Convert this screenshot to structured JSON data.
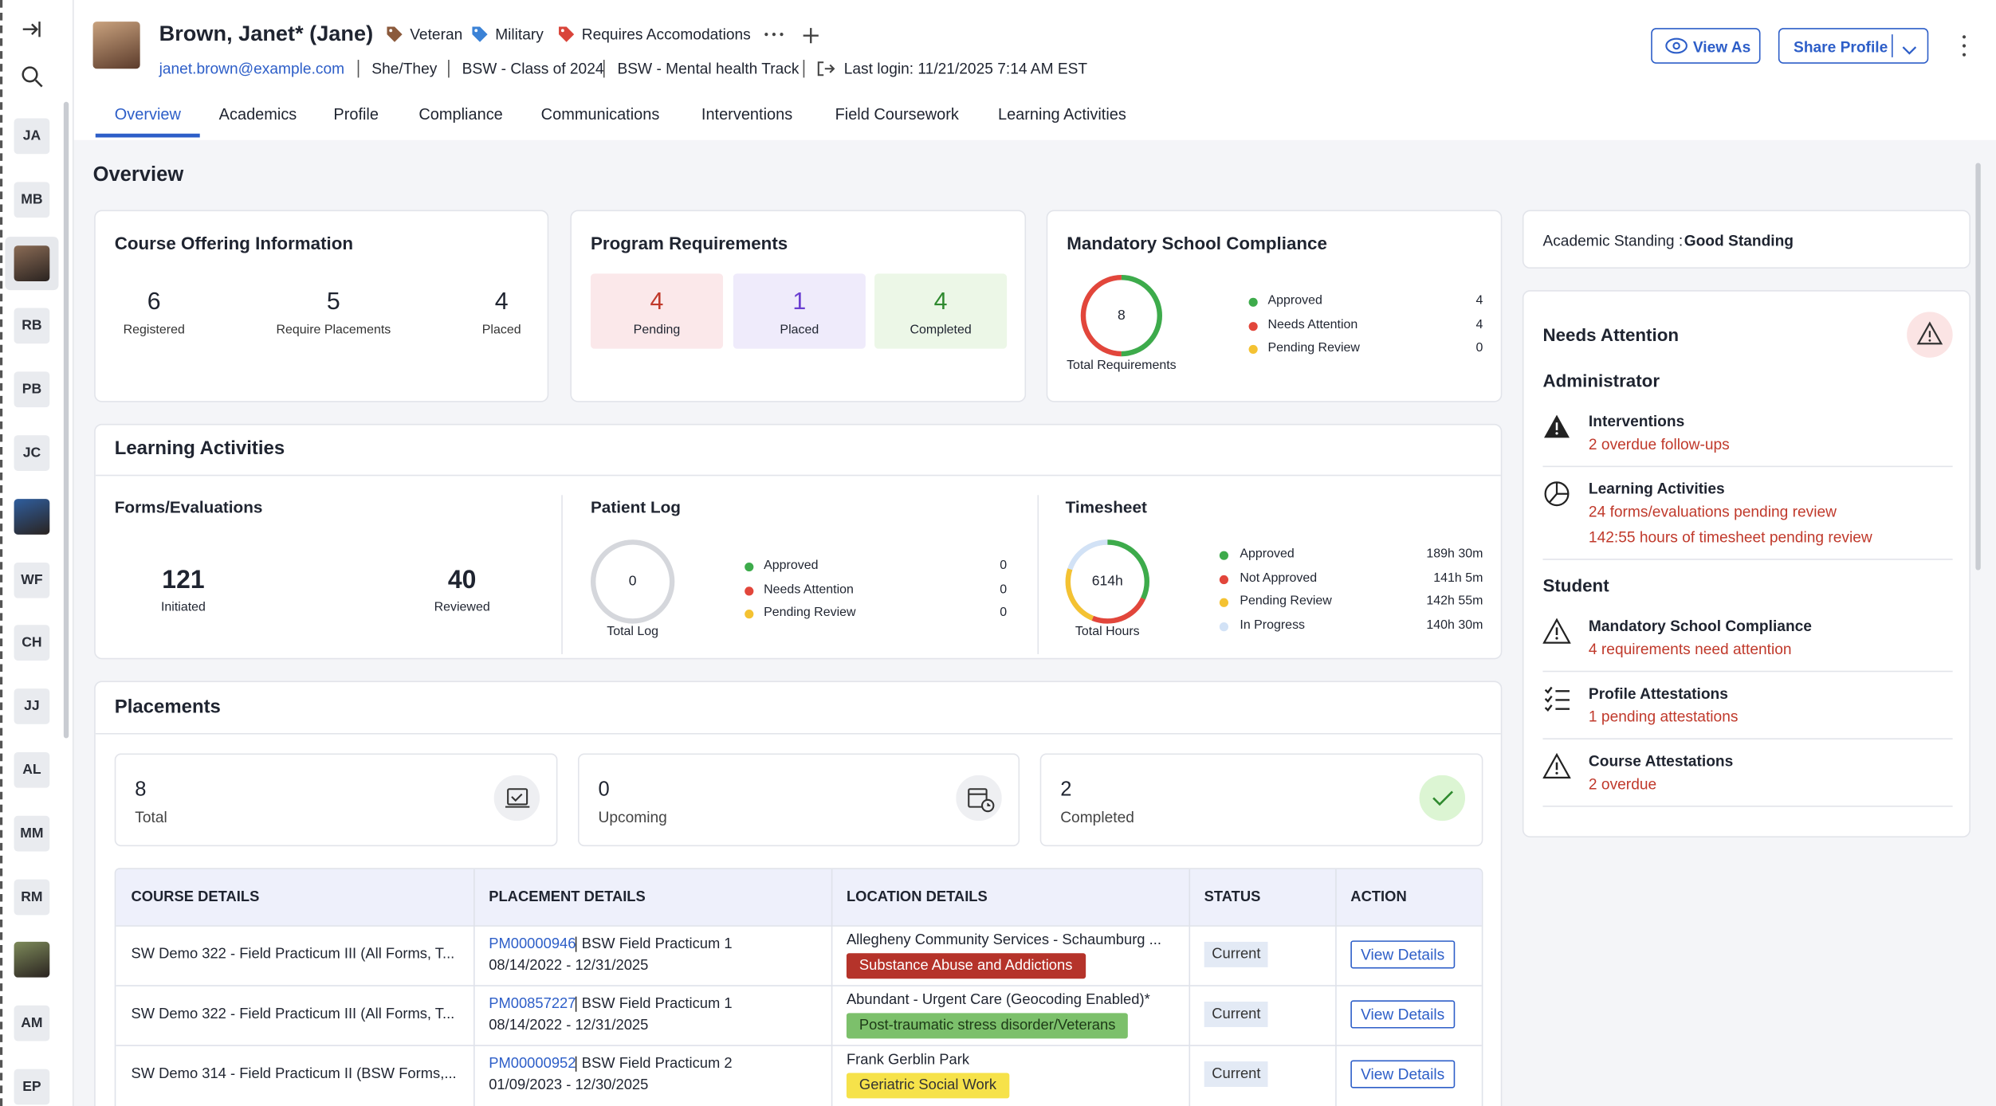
{
  "sidebar": {
    "avatars": [
      "JA",
      "MB",
      "RB",
      "PB",
      "JC",
      "WF",
      "CH",
      "JJ",
      "AL",
      "MM",
      "RM",
      "AM",
      "EP"
    ]
  },
  "header": {
    "name": "Brown, Janet* (Jane)",
    "tags": [
      "Veteran",
      "Military",
      "Requires Accomodations"
    ],
    "email": "janet.brown@example.com",
    "details": [
      "She/They",
      "BSW - Class of 2024",
      "BSW - Mental health Track"
    ],
    "last_login": "Last login: 11/21/2025 7:14 AM EST",
    "buttons": [
      "View As",
      "Share Profile"
    ]
  },
  "tabs": [
    "Overview",
    "Academics",
    "Profile",
    "Compliance",
    "Communications",
    "Interventions",
    "Field Coursework",
    "Learning Activities"
  ],
  "page_title": "Overview",
  "course_offering": {
    "title": "Course Offering Information",
    "stats": [
      {
        "value": 6,
        "label": "Registered"
      },
      {
        "value": 5,
        "label": "Require Placements"
      },
      {
        "value": 4,
        "label": "Placed"
      }
    ]
  },
  "program_requirements": {
    "title": "Program Requirements",
    "stats": [
      {
        "value": 4,
        "label": "Pending"
      },
      {
        "value": 1,
        "label": "Placed"
      },
      {
        "value": 4,
        "label": "Completed"
      }
    ]
  },
  "compliance": {
    "title": "Mandatory School Compliance",
    "total": 8,
    "total_label": "Total Requirements",
    "legend": [
      {
        "label": "Approved",
        "value": 4
      },
      {
        "label": "Needs Attention",
        "value": 4
      },
      {
        "label": "Pending Review",
        "value": 0
      }
    ]
  },
  "learning_activities": {
    "title": "Learning Activities",
    "forms": {
      "title": "Forms/Evaluations",
      "stats": [
        {
          "value": 121,
          "label": "Initiated"
        },
        {
          "value": 40,
          "label": "Reviewed"
        }
      ]
    },
    "patient_log": {
      "title": "Patient Log",
      "total": 0,
      "total_label": "Total Log",
      "legend": [
        {
          "label": "Approved",
          "value": 0
        },
        {
          "label": "Needs Attention",
          "value": 0
        },
        {
          "label": "Pending Review",
          "value": 0
        }
      ]
    },
    "timesheet": {
      "title": "Timesheet",
      "total": "614h",
      "total_label": "Total Hours",
      "legend": [
        {
          "label": "Approved",
          "value": "189h 30m"
        },
        {
          "label": "Not Approved",
          "value": "141h 5m"
        },
        {
          "label": "Pending Review",
          "value": "142h 55m"
        },
        {
          "label": "In Progress",
          "value": "140h 30m"
        }
      ]
    }
  },
  "placements": {
    "title": "Placements",
    "stats": [
      {
        "value": 8,
        "label": "Total"
      },
      {
        "value": 0,
        "label": "Upcoming"
      },
      {
        "value": 2,
        "label": "Completed"
      }
    ],
    "table": {
      "headers": [
        "COURSE DETAILS",
        "PLACEMENT DETAILS",
        "LOCATION DETAILS",
        "STATUS",
        "ACTION"
      ],
      "rows": [
        {
          "course": "SW Demo 322 - Field Practicum III (All Forms, T...",
          "placement_id": "PM00000946",
          "placement_name": "BSW Field Practicum 1",
          "dates": "08/14/2022 - 12/31/2025",
          "location": "Allegheny Community Services - Schaumburg ...",
          "tag": "Substance Abuse and Addictions",
          "status": "Current",
          "action": "View Details"
        },
        {
          "course": "SW Demo 322 - Field Practicum III (All Forms, T...",
          "placement_id": "PM00857227",
          "placement_name": "BSW Field Practicum 1",
          "dates": "08/14/2022 - 12/31/2025",
          "location": "Abundant - Urgent Care (Geocoding Enabled)*",
          "tag": "Post-traumatic stress disorder/Veterans",
          "status": "Current",
          "action": "View Details"
        },
        {
          "course": "SW Demo 314 - Field Practicum II (BSW Forms,...",
          "placement_id": "PM00000952",
          "placement_name": "BSW Field Practicum 2",
          "dates": "01/09/2023 - 12/30/2025",
          "location": "Frank Gerblin Park",
          "tag": "Geriatric Social Work",
          "status": "Current",
          "action": "View Details"
        }
      ]
    }
  },
  "academic_standing": {
    "label": "Academic Standing :",
    "value": "Good Standing"
  },
  "needs_attention": {
    "title": "Needs Attention",
    "groups": [
      {
        "title": "Administrator",
        "items": [
          {
            "title": "Interventions",
            "notes": [
              "2 overdue follow-ups"
            ]
          },
          {
            "title": "Learning Activities",
            "notes": [
              "24 forms/evaluations pending review",
              "142:55 hours of timesheet pending review"
            ]
          }
        ]
      },
      {
        "title": "Student",
        "items": [
          {
            "title": "Mandatory School Compliance",
            "notes": [
              "4 requirements need attention"
            ]
          },
          {
            "title": "Profile Attestations",
            "notes": [
              "1 pending attestations"
            ]
          },
          {
            "title": "Course Attestations",
            "notes": [
              "2 overdue"
            ]
          }
        ]
      }
    ]
  }
}
